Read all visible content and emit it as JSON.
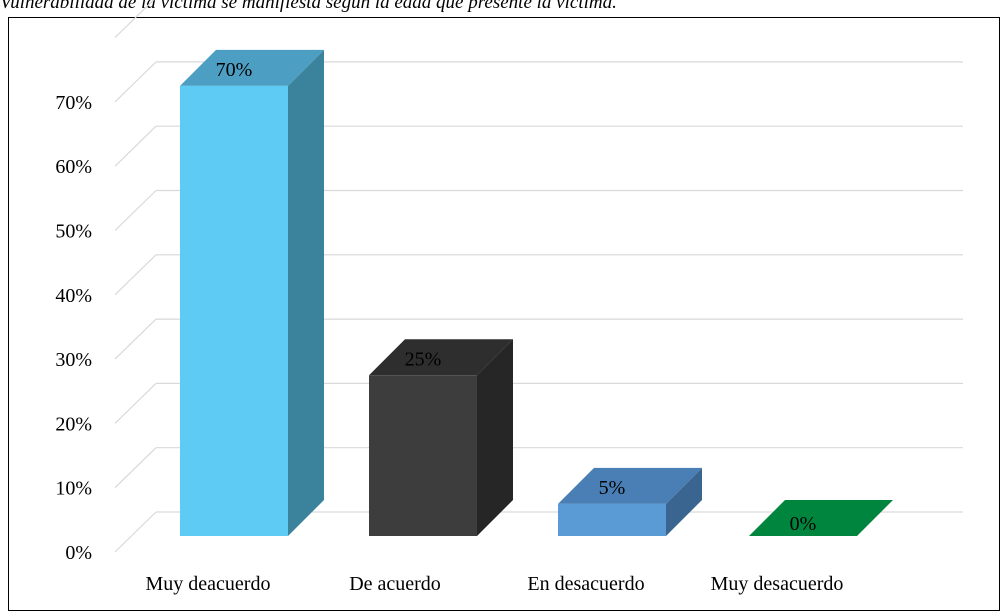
{
  "caption": "Vulnerabilidad de la víctima se manifiesta según la edad que presente la víctima.",
  "chart_data": {
    "type": "bar",
    "categories": [
      "Muy deacuerdo",
      "De acuerdo",
      "En desacuerdo",
      "Muy desacuerdo"
    ],
    "values": [
      70,
      25,
      5,
      0
    ],
    "data_labels": [
      "70%",
      "25%",
      "5%",
      "0%"
    ],
    "yticks": [
      "0%",
      "10%",
      "20%",
      "30%",
      "40%",
      "50%",
      "60%",
      "70%"
    ],
    "ylim": [
      0,
      70
    ],
    "grid": true,
    "legend": "none",
    "style": "3d",
    "colors": {
      "front": [
        "#5ecbf5",
        "#3d3d3d",
        "#5b9bd5",
        "#00853e"
      ],
      "side": [
        "#3b839c",
        "#262626",
        "#3a6590",
        "#00602c"
      ],
      "top": [
        "#4c9fc3",
        "#2e2e2e",
        "#4a7fb5",
        "#00853e"
      ]
    }
  }
}
